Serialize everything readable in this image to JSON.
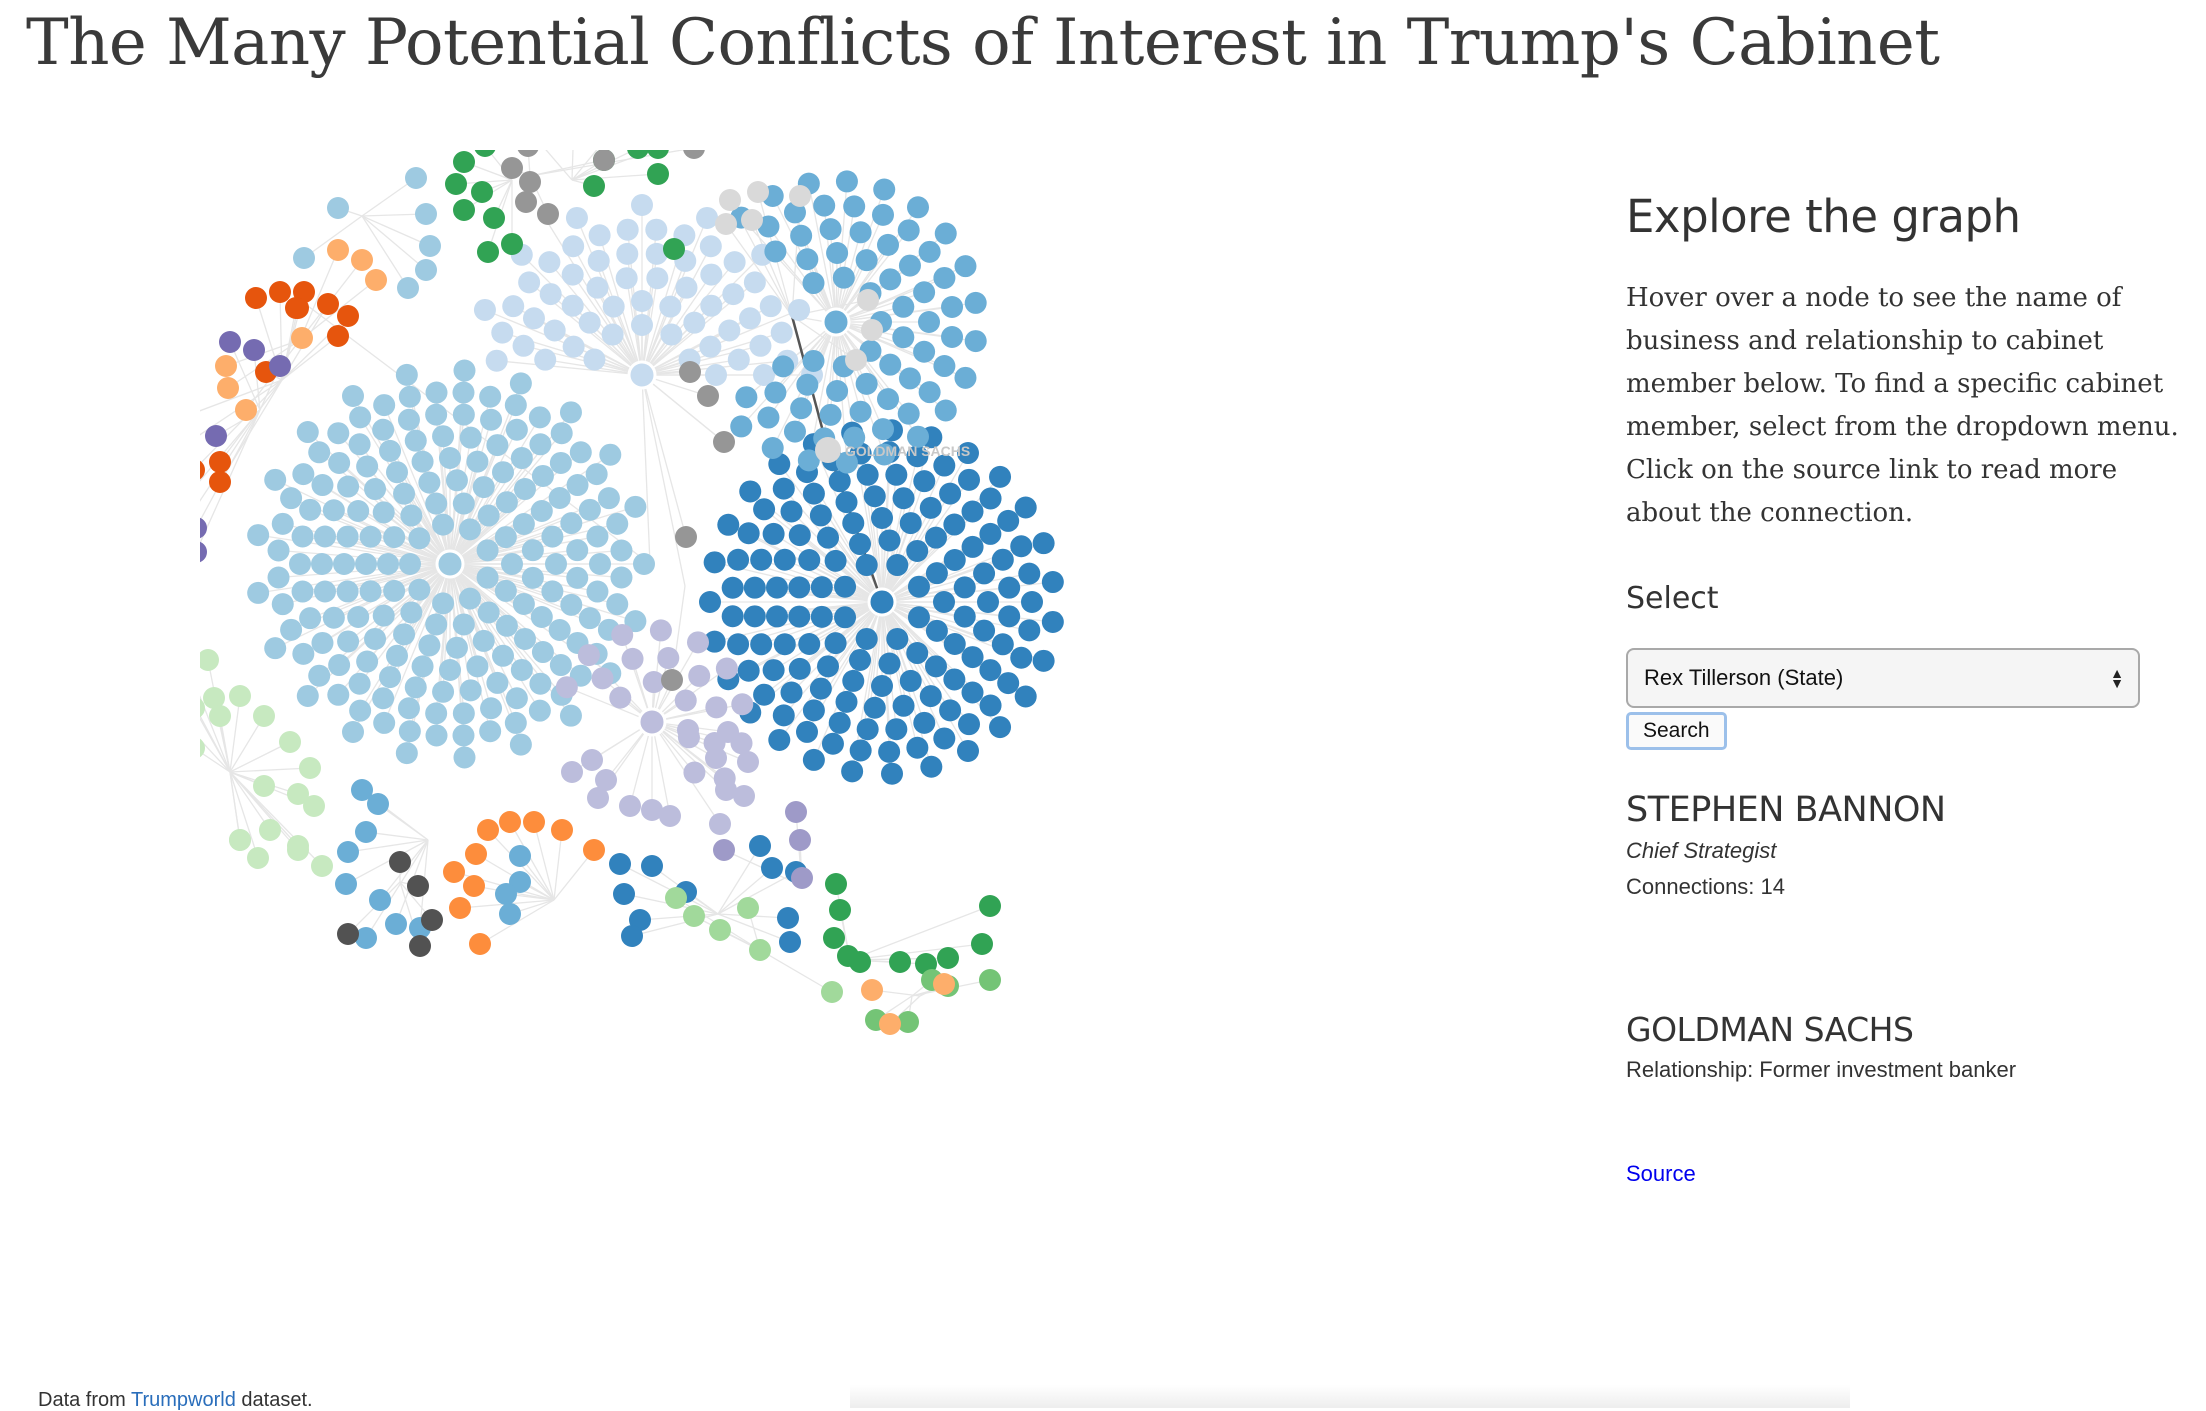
{
  "page": {
    "title": "The Many Potential Conflicts of Interest in Trump's Cabinet"
  },
  "graph": {
    "focus_node_label": "GOLDMAN SACHS",
    "link_color": "#e6e6e6",
    "highlight_link_color": "#555555",
    "clusters": [
      {
        "id": "big-light-blue",
        "color": "#9ecae1",
        "nodes": 190
      },
      {
        "id": "big-dark-blue",
        "color": "#3182bd",
        "nodes": 150
      },
      {
        "id": "pale-blue",
        "color": "#c6dbef",
        "nodes": 60
      },
      {
        "id": "mid-blue",
        "color": "#6baed6",
        "nodes": 70
      },
      {
        "id": "green",
        "color": "#31a354",
        "nodes": 16
      },
      {
        "id": "orange",
        "color": "#e6550d",
        "nodes": 18
      },
      {
        "id": "purple",
        "color": "#756bb1",
        "nodes": 9
      },
      {
        "id": "light-green",
        "color": "#c7e9c0",
        "nodes": 24
      },
      {
        "id": "lavender",
        "color": "#bcbddc",
        "nodes": 20
      },
      {
        "id": "light-orange",
        "color": "#fdae6b",
        "nodes": 14
      },
      {
        "id": "grey",
        "color": "#969696",
        "nodes": 10
      }
    ]
  },
  "panel": {
    "heading": "Explore the graph",
    "instructions": "Hover over a node to see the name of business and relationship to cabinet member below. To find a specific cabinet member, select from the dropdown menu. Click on the source link to read more about the connection.",
    "select_label": "Select",
    "select_value": "Rex Tillerson (State)",
    "search_button": "Search",
    "member": {
      "name": "STEPHEN BANNON",
      "role": "Chief Strategist",
      "connections": "Connections: 14"
    },
    "business": {
      "name": "GOLDMAN SACHS",
      "relationship": "Relationship: Former investment banker"
    },
    "source_link": "Source"
  },
  "footer": {
    "prefix": "Data from ",
    "link": "Trumpworld",
    "suffix": " dataset."
  }
}
